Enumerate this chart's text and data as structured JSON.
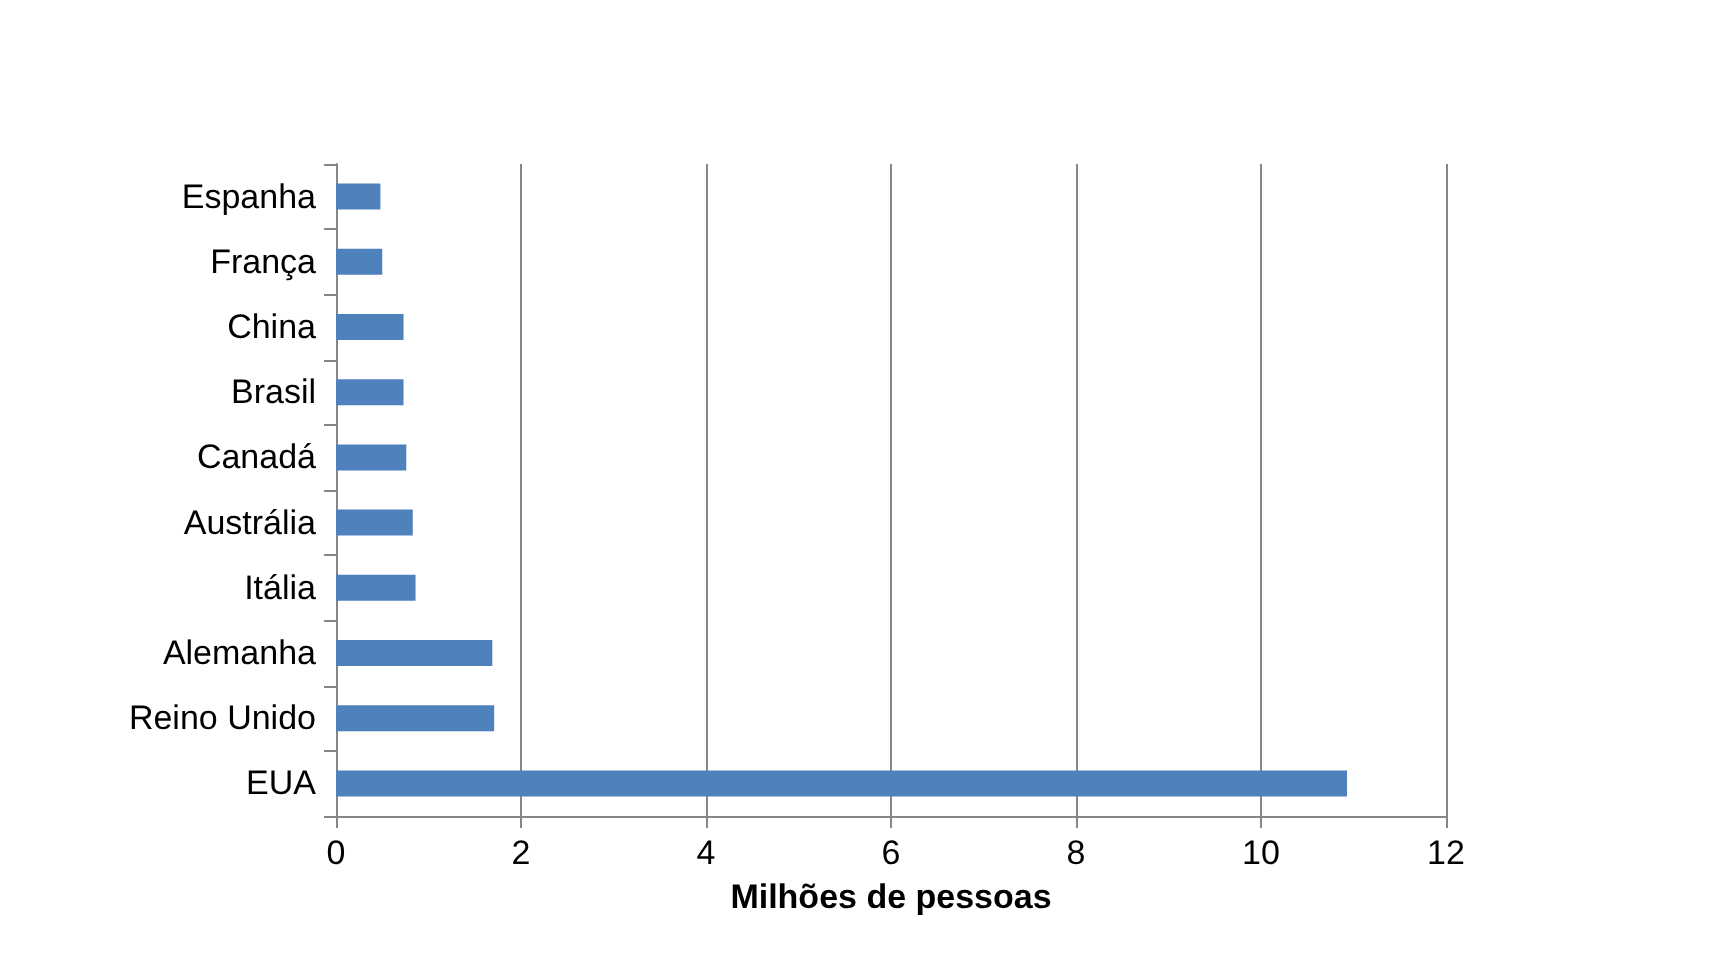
{
  "chart_data": {
    "type": "bar",
    "orientation": "horizontal",
    "xlabel": "Milhões de pessoas",
    "categories": [
      "Espanha",
      "França",
      "China",
      "Brasil",
      "Canadá",
      "Austrália",
      "Itália",
      "Alemanha",
      "Reino Unido",
      "EUA"
    ],
    "values": [
      0.48,
      0.5,
      0.73,
      0.73,
      0.76,
      0.83,
      0.86,
      1.69,
      1.71,
      10.93
    ],
    "color": "#4f81bd",
    "xlim": [
      0,
      12
    ],
    "xticks": [
      0,
      2,
      4,
      6,
      8,
      10,
      12
    ],
    "grid": "x"
  }
}
